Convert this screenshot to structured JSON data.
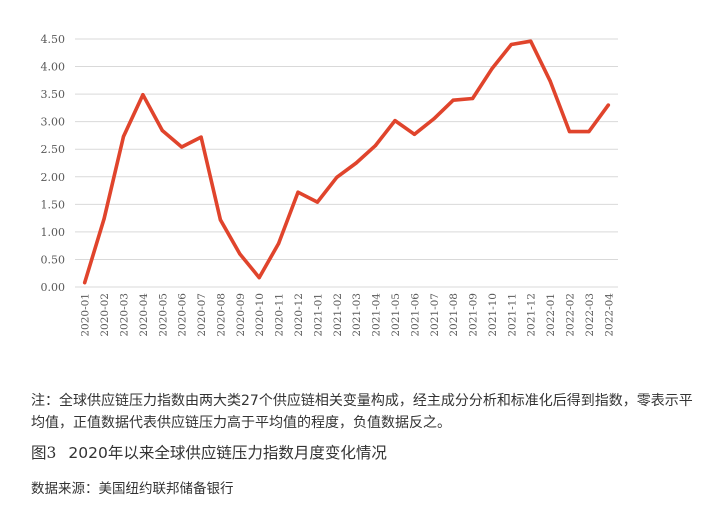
{
  "chart_data": {
    "type": "line",
    "categories": [
      "2020-01",
      "2020-02",
      "2020-03",
      "2020-04",
      "2020-05",
      "2020-06",
      "2020-07",
      "2020-08",
      "2020-09",
      "2020-10",
      "2020-11",
      "2020-12",
      "2021-01",
      "2021-02",
      "2021-03",
      "2021-04",
      "2021-05",
      "2021-06",
      "2021-07",
      "2021-08",
      "2021-09",
      "2021-10",
      "2021-11",
      "2021-12",
      "2022-01",
      "2022-02",
      "2022-03",
      "2022-04"
    ],
    "series": [
      {
        "values": [
          0.08,
          1.24,
          2.73,
          3.49,
          2.84,
          2.54,
          2.72,
          1.22,
          0.6,
          0.17,
          0.79,
          1.72,
          1.54,
          1.99,
          2.25,
          2.57,
          3.02,
          2.77,
          3.05,
          3.39,
          3.42,
          3.96,
          4.4,
          4.46,
          3.74,
          2.82,
          2.82,
          3.3
        ]
      }
    ],
    "yticks": [
      "0.00",
      "0.50",
      "1.00",
      "1.50",
      "2.00",
      "2.50",
      "3.00",
      "3.50",
      "4.00",
      "4.50"
    ],
    "ylim": [
      0,
      4.5
    ],
    "grid": true,
    "line_color": "#e0442c",
    "title": "",
    "xlabel": "",
    "ylabel": ""
  },
  "caption": {
    "note": "注：全球供应链压力指数由两大类27个供应链相关变量构成，经主成分分析和标准化后得到指数，零表示平均值，正值数据代表供应链压力高于平均值的程度，负值数据反之。",
    "figure_number": "图3",
    "figure_title": "2020年以来全球供应链压力指数月度变化情况",
    "source": "数据来源：美国纽约联邦储备银行"
  }
}
